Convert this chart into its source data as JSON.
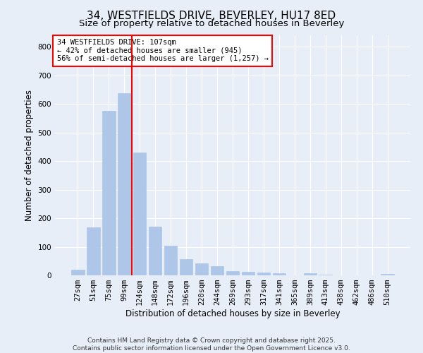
{
  "title": "34, WESTFIELDS DRIVE, BEVERLEY, HU17 8ED",
  "subtitle": "Size of property relative to detached houses in Beverley",
  "xlabel": "Distribution of detached houses by size in Beverley",
  "ylabel": "Number of detached properties",
  "categories": [
    "27sqm",
    "51sqm",
    "75sqm",
    "99sqm",
    "124sqm",
    "148sqm",
    "172sqm",
    "196sqm",
    "220sqm",
    "244sqm",
    "269sqm",
    "293sqm",
    "317sqm",
    "341sqm",
    "365sqm",
    "389sqm",
    "413sqm",
    "438sqm",
    "462sqm",
    "486sqm",
    "510sqm"
  ],
  "values": [
    20,
    168,
    575,
    638,
    430,
    170,
    105,
    58,
    43,
    32,
    15,
    12,
    10,
    8,
    0,
    7,
    3,
    0,
    0,
    0,
    5
  ],
  "bar_color": "#aec6e8",
  "bar_edgecolor": "#aec6e8",
  "vline_x": 3.5,
  "vline_color": "red",
  "annotation_text": "34 WESTFIELDS DRIVE: 107sqm\n← 42% of detached houses are smaller (945)\n56% of semi-detached houses are larger (1,257) →",
  "annotation_box_edgecolor": "red",
  "annotation_box_facecolor": "white",
  "ylim": [
    0,
    840
  ],
  "yticks": [
    0,
    100,
    200,
    300,
    400,
    500,
    600,
    700,
    800
  ],
  "footer_line1": "Contains HM Land Registry data © Crown copyright and database right 2025.",
  "footer_line2": "Contains public sector information licensed under the Open Government Licence v3.0.",
  "bg_color": "#e8eef8",
  "plot_bg_color": "#e8eef8",
  "grid_color": "white",
  "title_fontsize": 11,
  "subtitle_fontsize": 9.5,
  "axis_label_fontsize": 8.5,
  "tick_fontsize": 7.5,
  "footer_fontsize": 6.5,
  "annotation_fontsize": 7.5
}
